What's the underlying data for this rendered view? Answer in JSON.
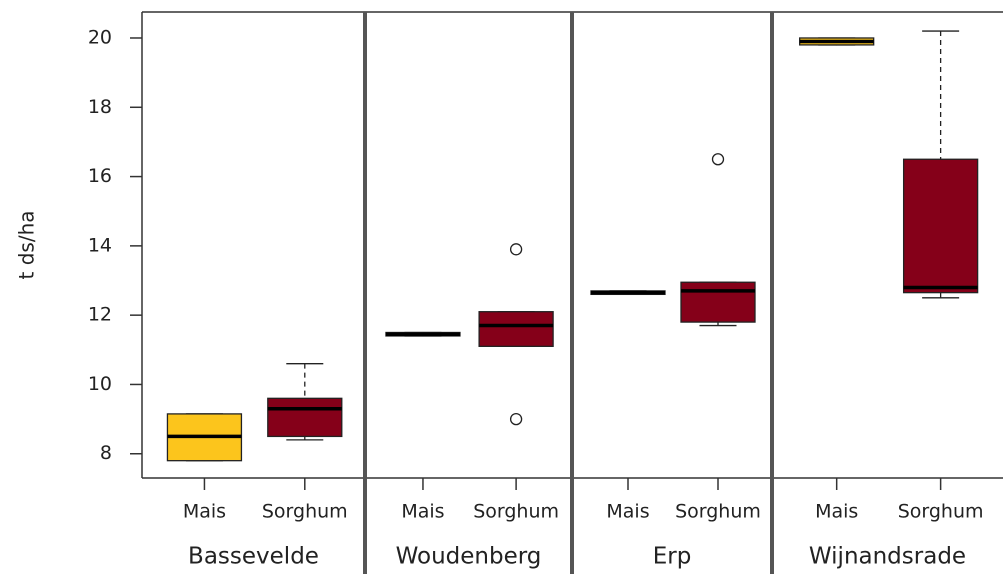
{
  "chart_data": {
    "type": "box",
    "y_label": "t ds/ha",
    "ylim": [
      7.3,
      20.75
    ],
    "yticks": [
      8,
      10,
      12,
      14,
      16,
      18,
      20
    ],
    "panels": [
      {
        "name": "Bassevelde",
        "boxes": [
          {
            "category": "Mais",
            "color": "#fcc51c",
            "min": 7.8,
            "q1": 7.8,
            "median": 8.5,
            "q3": 9.15,
            "max": 9.15,
            "outliers": []
          },
          {
            "category": "Sorghum",
            "color": "#850019",
            "min": 8.4,
            "q1": 8.5,
            "median": 9.3,
            "q3": 9.6,
            "max": 10.6,
            "outliers": []
          }
        ]
      },
      {
        "name": "Woudenberg",
        "boxes": [
          {
            "category": "Mais",
            "color": "#fcc51c",
            "min": 11.4,
            "q1": 11.4,
            "median": 11.45,
            "q3": 11.5,
            "max": 11.5,
            "outliers": []
          },
          {
            "category": "Sorghum",
            "color": "#850019",
            "min": 11.1,
            "q1": 11.1,
            "median": 11.7,
            "q3": 12.1,
            "max": 12.1,
            "outliers": [
              13.9,
              9.0
            ]
          }
        ]
      },
      {
        "name": "Erp",
        "boxes": [
          {
            "category": "Mais",
            "color": "#fcc51c",
            "min": 12.6,
            "q1": 12.6,
            "median": 12.65,
            "q3": 12.7,
            "max": 12.7,
            "outliers": []
          },
          {
            "category": "Sorghum",
            "color": "#850019",
            "min": 11.7,
            "q1": 11.8,
            "median": 12.7,
            "q3": 12.95,
            "max": 12.95,
            "outliers": [
              16.5
            ]
          }
        ]
      },
      {
        "name": "Wijnandsrade",
        "boxes": [
          {
            "category": "Mais",
            "color": "#fcc51c",
            "min": 19.8,
            "q1": 19.8,
            "median": 19.9,
            "q3": 20.0,
            "max": 20.0,
            "outliers": []
          },
          {
            "category": "Sorghum",
            "color": "#850019",
            "min": 12.5,
            "q1": 12.65,
            "median": 12.8,
            "q3": 16.5,
            "max": 20.2,
            "outliers": []
          }
        ]
      }
    ]
  }
}
